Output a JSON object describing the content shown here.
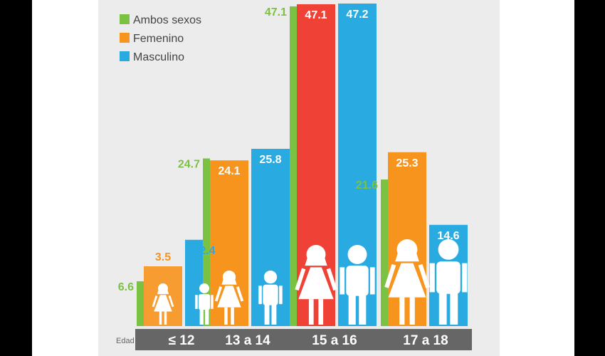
{
  "chart_data": {
    "type": "bar",
    "xlabel": "Edad",
    "ylabel": "",
    "categories": [
      "≤ 12",
      "13 a 14",
      "15 a 16",
      "17 a 18"
    ],
    "series": [
      {
        "name": "Ambos sexos",
        "values": [
          6.6,
          24.7,
          47.1,
          21.6
        ],
        "color": "#7cc242"
      },
      {
        "name": "Femenino",
        "values": [
          3.5,
          24.1,
          47.1,
          25.3
        ],
        "color": "#f7941d"
      },
      {
        "name": "Masculino",
        "values": [
          12.4,
          25.8,
          47.2,
          14.6
        ],
        "color": "#29abe2"
      }
    ],
    "highlight_category": "15 a 16",
    "highlight_female_color": "#ef4136",
    "highlight_male_color": "#29abe2",
    "ylim": [
      0,
      47.2
    ],
    "legend_position": "top-left",
    "grid": false,
    "category_band_color": "#666666",
    "icons": [
      "girl-figure-icon",
      "boy-figure-icon"
    ]
  }
}
